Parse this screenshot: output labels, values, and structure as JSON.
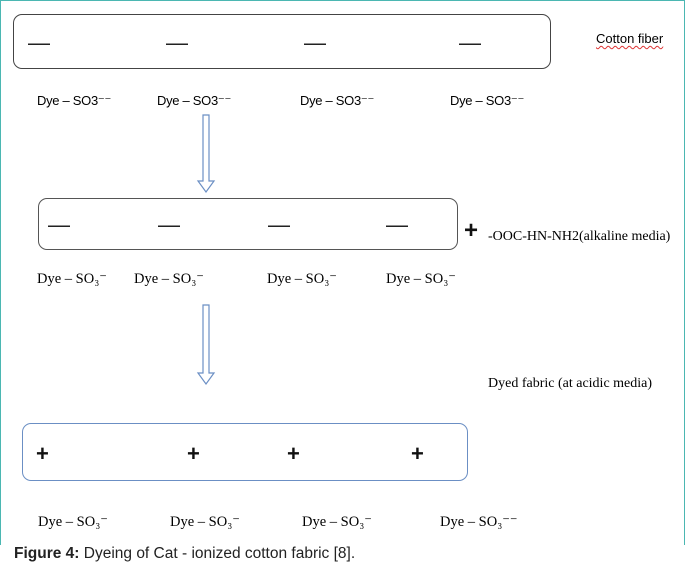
{
  "figure": {
    "cotton_fiber_label": "Cotton fiber",
    "alkaline_label": "-OOC-HN-NH2(alkaline media)",
    "alkaline_plus": "+",
    "dyed_fabric_label": "Dyed fabric (at acidic media)",
    "row1": {
      "charges": [
        "—",
        "—",
        "—",
        "—"
      ],
      "labels": [
        "Dye – SO3⁻⁻",
        "Dye – SO3⁻⁻",
        "Dye – SO3⁻⁻",
        "Dye – SO3⁻⁻"
      ]
    },
    "row2": {
      "charges": [
        "—",
        "—",
        "—",
        "—"
      ],
      "labels": [
        "Dye – SO₃⁻",
        "Dye – SO₃⁻",
        "Dye – SO₃⁻",
        "Dye – SO₃⁻"
      ]
    },
    "row3": {
      "charges": [
        "+",
        "+",
        "+",
        "+"
      ],
      "labels": [
        "Dye – SO₃⁻",
        "Dye – SO₃⁻",
        "Dye – SO₃⁻",
        "Dye – SO₃⁻⁻"
      ]
    },
    "colors": {
      "frame": "#4bb7b2",
      "arrow": "#6b8fc4",
      "box3_border": "#6b8fc4"
    }
  },
  "caption": {
    "label": "Figure 4:",
    "text": " Dyeing of Cat - ionized cotton fabric [8]."
  }
}
